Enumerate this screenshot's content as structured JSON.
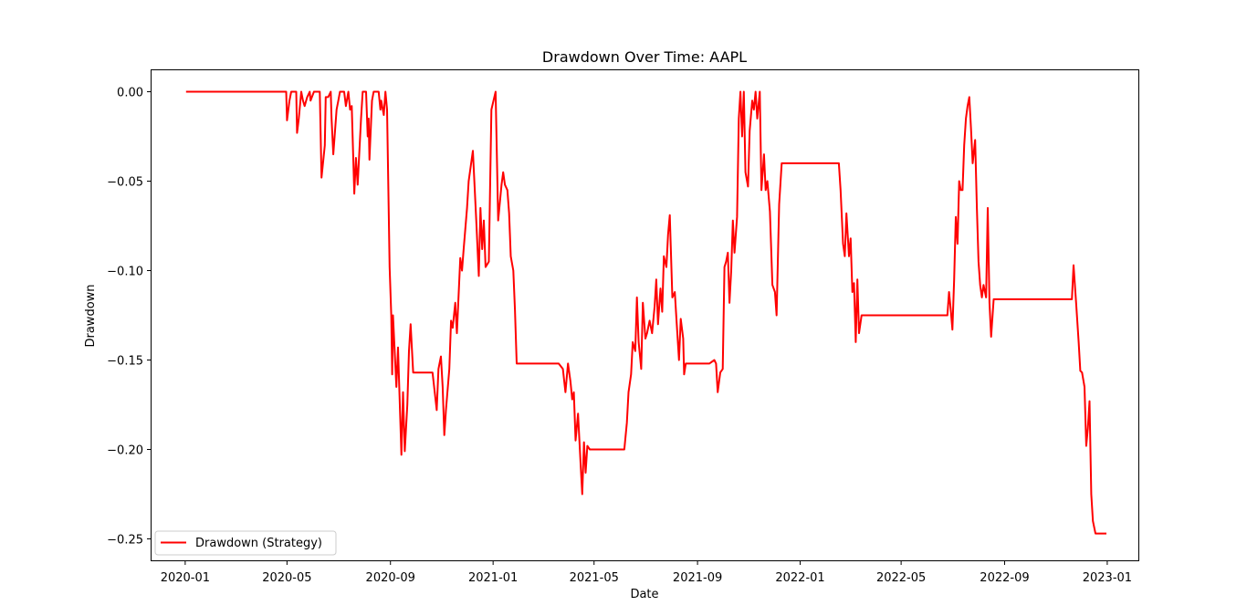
{
  "chart_data": {
    "type": "line",
    "title": "Drawdown Over Time: AAPL",
    "xlabel": "Date",
    "ylabel": "Drawdown",
    "xlim": [
      "2019-11-22",
      "2023-02-07"
    ],
    "ylim": [
      -0.262,
      0.012
    ],
    "x_ticks": [
      "2020-01",
      "2020-05",
      "2020-09",
      "2021-01",
      "2021-05",
      "2021-09",
      "2022-01",
      "2022-05",
      "2022-09",
      "2023-01"
    ],
    "y_ticks": [
      0.0,
      -0.05,
      -0.1,
      -0.15,
      -0.2,
      -0.25
    ],
    "y_tick_labels": [
      "0.00",
      "−0.05",
      "−0.10",
      "−0.15",
      "−0.20",
      "−0.25"
    ],
    "grid": false,
    "legend_position": "lower-left",
    "series": [
      {
        "name": "Drawdown (Strategy)",
        "color": "#ff0000",
        "points": [
          [
            "2020-01-02",
            0.0
          ],
          [
            "2020-04-30",
            0.0
          ],
          [
            "2020-05-01",
            -0.016
          ],
          [
            "2020-05-04",
            -0.005
          ],
          [
            "2020-05-06",
            0.0
          ],
          [
            "2020-05-12",
            0.0
          ],
          [
            "2020-05-13",
            -0.023
          ],
          [
            "2020-05-15",
            -0.015
          ],
          [
            "2020-05-18",
            0.0
          ],
          [
            "2020-05-20",
            -0.005
          ],
          [
            "2020-05-22",
            -0.008
          ],
          [
            "2020-05-25",
            -0.003
          ],
          [
            "2020-05-28",
            0.0
          ],
          [
            "2020-05-29",
            -0.005
          ],
          [
            "2020-06-02",
            0.0
          ],
          [
            "2020-06-09",
            0.0
          ],
          [
            "2020-06-11",
            -0.048
          ],
          [
            "2020-06-15",
            -0.03
          ],
          [
            "2020-06-16",
            -0.003
          ],
          [
            "2020-06-19",
            -0.003
          ],
          [
            "2020-06-22",
            0.0
          ],
          [
            "2020-06-23",
            -0.015
          ],
          [
            "2020-06-25",
            -0.035
          ],
          [
            "2020-06-29",
            -0.01
          ],
          [
            "2020-07-01",
            -0.005
          ],
          [
            "2020-07-03",
            0.0
          ],
          [
            "2020-07-08",
            0.0
          ],
          [
            "2020-07-10",
            -0.008
          ],
          [
            "2020-07-13",
            0.0
          ],
          [
            "2020-07-15",
            -0.01
          ],
          [
            "2020-07-17",
            -0.008
          ],
          [
            "2020-07-20",
            -0.057
          ],
          [
            "2020-07-22",
            -0.037
          ],
          [
            "2020-07-24",
            -0.052
          ],
          [
            "2020-07-28",
            -0.015
          ],
          [
            "2020-07-30",
            0.0
          ],
          [
            "2020-08-03",
            0.0
          ],
          [
            "2020-08-05",
            -0.025
          ],
          [
            "2020-08-06",
            -0.015
          ],
          [
            "2020-08-07",
            -0.038
          ],
          [
            "2020-08-10",
            -0.005
          ],
          [
            "2020-08-12",
            0.0
          ],
          [
            "2020-08-18",
            0.0
          ],
          [
            "2020-08-20",
            -0.01
          ],
          [
            "2020-08-21",
            -0.005
          ],
          [
            "2020-08-24",
            -0.013
          ],
          [
            "2020-08-26",
            0.0
          ],
          [
            "2020-08-28",
            -0.01
          ],
          [
            "2020-08-31",
            -0.098
          ],
          [
            "2020-09-02",
            -0.125
          ],
          [
            "2020-09-03",
            -0.158
          ],
          [
            "2020-09-04",
            -0.125
          ],
          [
            "2020-09-08",
            -0.165
          ],
          [
            "2020-09-10",
            -0.143
          ],
          [
            "2020-09-14",
            -0.203
          ],
          [
            "2020-09-16",
            -0.168
          ],
          [
            "2020-09-18",
            -0.201
          ],
          [
            "2020-09-21",
            -0.175
          ],
          [
            "2020-09-23",
            -0.145
          ],
          [
            "2020-09-25",
            -0.13
          ],
          [
            "2020-09-28",
            -0.157
          ],
          [
            "2020-10-05",
            -0.157
          ],
          [
            "2020-10-15",
            -0.157
          ],
          [
            "2020-10-21",
            -0.157
          ],
          [
            "2020-10-26",
            -0.178
          ],
          [
            "2020-10-28",
            -0.155
          ],
          [
            "2020-10-31",
            -0.148
          ],
          [
            "2020-11-02",
            -0.165
          ],
          [
            "2020-11-04",
            -0.192
          ],
          [
            "2020-11-06",
            -0.178
          ],
          [
            "2020-11-10",
            -0.155
          ],
          [
            "2020-11-12",
            -0.128
          ],
          [
            "2020-11-14",
            -0.132
          ],
          [
            "2020-11-17",
            -0.118
          ],
          [
            "2020-11-19",
            -0.135
          ],
          [
            "2020-11-23",
            -0.093
          ],
          [
            "2020-11-25",
            -0.1
          ],
          [
            "2020-11-27",
            -0.088
          ],
          [
            "2020-12-01",
            -0.065
          ],
          [
            "2020-12-03",
            -0.05
          ],
          [
            "2020-12-08",
            -0.033
          ],
          [
            "2020-12-12",
            -0.072
          ],
          [
            "2020-12-15",
            -0.103
          ],
          [
            "2020-12-17",
            -0.065
          ],
          [
            "2020-12-19",
            -0.088
          ],
          [
            "2020-12-21",
            -0.072
          ],
          [
            "2020-12-23",
            -0.098
          ],
          [
            "2020-12-27",
            -0.095
          ],
          [
            "2020-12-30",
            -0.01
          ],
          [
            "2021-01-04",
            0.0
          ],
          [
            "2021-01-07",
            -0.072
          ],
          [
            "2021-01-11",
            -0.052
          ],
          [
            "2021-01-13",
            -0.045
          ],
          [
            "2021-01-15",
            -0.052
          ],
          [
            "2021-01-18",
            -0.055
          ],
          [
            "2021-01-20",
            -0.068
          ],
          [
            "2021-01-22",
            -0.092
          ],
          [
            "2021-01-25",
            -0.1
          ],
          [
            "2021-01-27",
            -0.122
          ],
          [
            "2021-01-29",
            -0.152
          ],
          [
            "2021-02-10",
            -0.152
          ],
          [
            "2021-02-20",
            -0.152
          ],
          [
            "2021-03-05",
            -0.152
          ],
          [
            "2021-03-20",
            -0.152
          ],
          [
            "2021-03-25",
            -0.155
          ],
          [
            "2021-03-28",
            -0.168
          ],
          [
            "2021-03-31",
            -0.152
          ],
          [
            "2021-04-03",
            -0.162
          ],
          [
            "2021-04-05",
            -0.172
          ],
          [
            "2021-04-07",
            -0.168
          ],
          [
            "2021-04-09",
            -0.195
          ],
          [
            "2021-04-12",
            -0.18
          ],
          [
            "2021-04-15",
            -0.208
          ],
          [
            "2021-04-17",
            -0.225
          ],
          [
            "2021-04-19",
            -0.196
          ],
          [
            "2021-04-21",
            -0.213
          ],
          [
            "2021-04-23",
            -0.198
          ],
          [
            "2021-04-26",
            -0.2
          ],
          [
            "2021-05-10",
            -0.2
          ],
          [
            "2021-06-01",
            -0.2
          ],
          [
            "2021-06-06",
            -0.2
          ],
          [
            "2021-06-09",
            -0.185
          ],
          [
            "2021-06-11",
            -0.168
          ],
          [
            "2021-06-14",
            -0.158
          ],
          [
            "2021-06-16",
            -0.14
          ],
          [
            "2021-06-19",
            -0.145
          ],
          [
            "2021-06-21",
            -0.115
          ],
          [
            "2021-06-23",
            -0.14
          ],
          [
            "2021-06-26",
            -0.155
          ],
          [
            "2021-06-28",
            -0.118
          ],
          [
            "2021-07-01",
            -0.138
          ],
          [
            "2021-07-03",
            -0.135
          ],
          [
            "2021-07-06",
            -0.128
          ],
          [
            "2021-07-09",
            -0.135
          ],
          [
            "2021-07-12",
            -0.12
          ],
          [
            "2021-07-14",
            -0.105
          ],
          [
            "2021-07-16",
            -0.13
          ],
          [
            "2021-07-19",
            -0.11
          ],
          [
            "2021-07-21",
            -0.123
          ],
          [
            "2021-07-23",
            -0.092
          ],
          [
            "2021-07-26",
            -0.098
          ],
          [
            "2021-07-28",
            -0.08
          ],
          [
            "2021-07-30",
            -0.069
          ],
          [
            "2021-08-02",
            -0.115
          ],
          [
            "2021-08-05",
            -0.112
          ],
          [
            "2021-08-07",
            -0.128
          ],
          [
            "2021-08-10",
            -0.15
          ],
          [
            "2021-08-12",
            -0.127
          ],
          [
            "2021-08-15",
            -0.138
          ],
          [
            "2021-08-16",
            -0.158
          ],
          [
            "2021-08-18",
            -0.152
          ],
          [
            "2021-09-01",
            -0.152
          ],
          [
            "2021-09-15",
            -0.152
          ],
          [
            "2021-09-21",
            -0.15
          ],
          [
            "2021-09-23",
            -0.152
          ],
          [
            "2021-09-25",
            -0.168
          ],
          [
            "2021-09-28",
            -0.157
          ],
          [
            "2021-10-01",
            -0.155
          ],
          [
            "2021-10-03",
            -0.098
          ],
          [
            "2021-10-05",
            -0.095
          ],
          [
            "2021-10-07",
            -0.09
          ],
          [
            "2021-10-09",
            -0.118
          ],
          [
            "2021-10-11",
            -0.1
          ],
          [
            "2021-10-13",
            -0.072
          ],
          [
            "2021-10-15",
            -0.09
          ],
          [
            "2021-10-18",
            -0.07
          ],
          [
            "2021-10-20",
            -0.015
          ],
          [
            "2021-10-22",
            0.0
          ],
          [
            "2021-10-24",
            -0.025
          ],
          [
            "2021-10-26",
            0.0
          ],
          [
            "2021-10-28",
            -0.045
          ],
          [
            "2021-10-31",
            -0.053
          ],
          [
            "2021-11-02",
            -0.022
          ],
          [
            "2021-11-05",
            -0.005
          ],
          [
            "2021-11-07",
            -0.01
          ],
          [
            "2021-11-09",
            0.0
          ],
          [
            "2021-11-11",
            -0.015
          ],
          [
            "2021-11-14",
            0.0
          ],
          [
            "2021-11-16",
            -0.055
          ],
          [
            "2021-11-19",
            -0.035
          ],
          [
            "2021-11-21",
            -0.055
          ],
          [
            "2021-11-23",
            -0.05
          ],
          [
            "2021-11-26",
            -0.067
          ],
          [
            "2021-11-29",
            -0.108
          ],
          [
            "2021-12-02",
            -0.112
          ],
          [
            "2021-12-04",
            -0.125
          ],
          [
            "2021-12-07",
            -0.063
          ],
          [
            "2021-12-10",
            -0.04
          ],
          [
            "2021-12-20",
            -0.04
          ],
          [
            "2022-01-10",
            -0.04
          ],
          [
            "2022-02-01",
            -0.04
          ],
          [
            "2022-02-10",
            -0.04
          ],
          [
            "2022-02-16",
            -0.04
          ],
          [
            "2022-02-18",
            -0.055
          ],
          [
            "2022-02-21",
            -0.085
          ],
          [
            "2022-02-23",
            -0.092
          ],
          [
            "2022-02-25",
            -0.068
          ],
          [
            "2022-02-28",
            -0.092
          ],
          [
            "2022-03-02",
            -0.082
          ],
          [
            "2022-03-04",
            -0.112
          ],
          [
            "2022-03-06",
            -0.107
          ],
          [
            "2022-03-08",
            -0.14
          ],
          [
            "2022-03-10",
            -0.105
          ],
          [
            "2022-03-12",
            -0.135
          ],
          [
            "2022-03-15",
            -0.125
          ],
          [
            "2022-04-01",
            -0.125
          ],
          [
            "2022-05-01",
            -0.125
          ],
          [
            "2022-06-01",
            -0.125
          ],
          [
            "2022-06-25",
            -0.125
          ],
          [
            "2022-06-27",
            -0.112
          ],
          [
            "2022-06-29",
            -0.122
          ],
          [
            "2022-07-01",
            -0.133
          ],
          [
            "2022-07-03",
            -0.105
          ],
          [
            "2022-07-05",
            -0.07
          ],
          [
            "2022-07-07",
            -0.085
          ],
          [
            "2022-07-09",
            -0.05
          ],
          [
            "2022-07-11",
            -0.055
          ],
          [
            "2022-07-13",
            -0.055
          ],
          [
            "2022-07-15",
            -0.03
          ],
          [
            "2022-07-17",
            -0.015
          ],
          [
            "2022-07-19",
            -0.008
          ],
          [
            "2022-07-21",
            -0.003
          ],
          [
            "2022-07-23",
            -0.02
          ],
          [
            "2022-07-25",
            -0.04
          ],
          [
            "2022-07-28",
            -0.027
          ],
          [
            "2022-07-30",
            -0.065
          ],
          [
            "2022-08-01",
            -0.095
          ],
          [
            "2022-08-03",
            -0.108
          ],
          [
            "2022-08-05",
            -0.115
          ],
          [
            "2022-08-07",
            -0.108
          ],
          [
            "2022-08-10",
            -0.115
          ],
          [
            "2022-08-12",
            -0.065
          ],
          [
            "2022-08-14",
            -0.118
          ],
          [
            "2022-08-16",
            -0.137
          ],
          [
            "2022-08-19",
            -0.116
          ],
          [
            "2022-09-05",
            -0.116
          ],
          [
            "2022-10-01",
            -0.116
          ],
          [
            "2022-11-01",
            -0.116
          ],
          [
            "2022-11-20",
            -0.116
          ],
          [
            "2022-11-22",
            -0.097
          ],
          [
            "2022-11-25",
            -0.118
          ],
          [
            "2022-11-28",
            -0.14
          ],
          [
            "2022-11-30",
            -0.156
          ],
          [
            "2022-12-02",
            -0.157
          ],
          [
            "2022-12-05",
            -0.165
          ],
          [
            "2022-12-07",
            -0.198
          ],
          [
            "2022-12-09",
            -0.188
          ],
          [
            "2022-12-11",
            -0.173
          ],
          [
            "2022-12-13",
            -0.225
          ],
          [
            "2022-12-15",
            -0.24
          ],
          [
            "2022-12-18",
            -0.247
          ],
          [
            "2022-12-31",
            -0.247
          ]
        ]
      }
    ]
  }
}
